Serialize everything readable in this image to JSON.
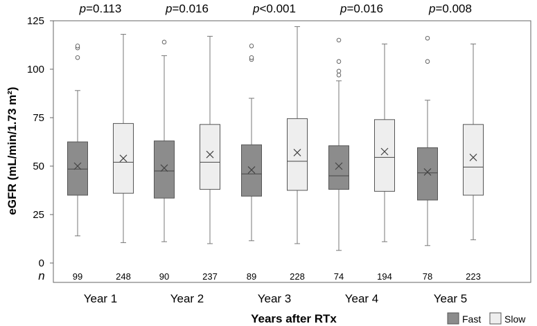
{
  "chart_data": {
    "type": "box",
    "title": "",
    "xlabel": "Years after RTx",
    "ylabel": "eGFR (mL/min/1.73 m²)",
    "ylim": [
      -10,
      125
    ],
    "yticks": [
      0,
      25,
      50,
      75,
      100,
      125
    ],
    "n_label": "n",
    "categories": [
      "Year 1",
      "Year 2",
      "Year 3",
      "Year 4",
      "Year 5"
    ],
    "p_prefix": "p",
    "p_values": [
      "=0.113",
      "=0.016",
      "<0.001",
      "=0.016",
      "=0.008"
    ],
    "legend": [
      {
        "name": "Fast",
        "color": "#8c8c8c"
      },
      {
        "name": "Slow",
        "color": "#eeeeee"
      }
    ],
    "series": [
      {
        "name": "Fast",
        "color": "#8c8c8c",
        "boxes": [
          {
            "n": "99",
            "min": 14,
            "q1": 35,
            "median": 48.5,
            "q3": 62.5,
            "max": 89,
            "mean": 50,
            "outliers": [
              106,
              111,
              112
            ]
          },
          {
            "n": "90",
            "min": 11,
            "q1": 33.5,
            "median": 47.5,
            "q3": 63,
            "max": 107,
            "mean": 49,
            "outliers": [
              114
            ]
          },
          {
            "n": "89",
            "min": 11.5,
            "q1": 34.5,
            "median": 46,
            "q3": 61,
            "max": 85,
            "mean": 48,
            "outliers": [
              105,
              106,
              112
            ]
          },
          {
            "n": "74",
            "min": 6.5,
            "q1": 38,
            "median": 45,
            "q3": 60.5,
            "max": 94,
            "mean": 50,
            "outliers": [
              97,
              99,
              104,
              115
            ]
          },
          {
            "n": "78",
            "min": 9,
            "q1": 32.5,
            "median": 46.5,
            "q3": 59.5,
            "max": 84,
            "mean": 47,
            "outliers": [
              104,
              116
            ]
          }
        ]
      },
      {
        "name": "Slow",
        "color": "#eeeeee",
        "boxes": [
          {
            "n": "248",
            "min": 10.5,
            "q1": 36,
            "median": 52,
            "q3": 72,
            "max": 118,
            "mean": 54,
            "outliers": []
          },
          {
            "n": "237",
            "min": 10,
            "q1": 38,
            "median": 52,
            "q3": 71.5,
            "max": 117,
            "mean": 56,
            "outliers": []
          },
          {
            "n": "228",
            "min": 10,
            "q1": 37.5,
            "median": 52.5,
            "q3": 74.5,
            "max": 122,
            "mean": 57,
            "outliers": []
          },
          {
            "n": "194",
            "min": 11,
            "q1": 37,
            "median": 54.5,
            "q3": 74,
            "max": 113,
            "mean": 57.5,
            "outliers": []
          },
          {
            "n": "223",
            "min": 12,
            "q1": 35,
            "median": 49.5,
            "q3": 71.5,
            "max": 113,
            "mean": 54.5,
            "outliers": []
          }
        ]
      }
    ]
  }
}
